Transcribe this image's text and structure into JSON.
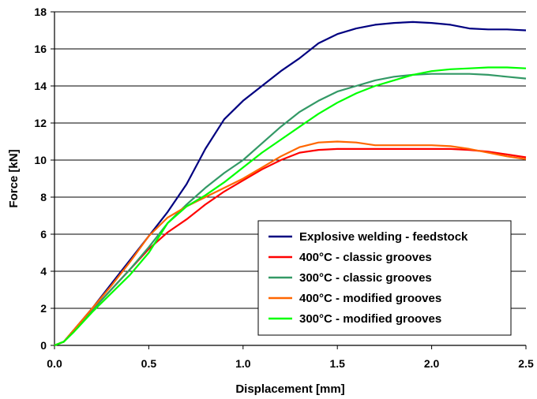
{
  "chart_data": {
    "type": "line",
    "title": "",
    "xlabel": "Displacement [mm]",
    "ylabel": "Force [kN]",
    "xlim": [
      0,
      2.5
    ],
    "ylim": [
      0,
      18
    ],
    "x_ticks": [
      "0.0",
      "0.5",
      "1.0",
      "1.5",
      "2.0",
      "2.5"
    ],
    "y_ticks": [
      "0",
      "2",
      "4",
      "6",
      "8",
      "10",
      "12",
      "14",
      "16",
      "18"
    ],
    "grid": "horizontal",
    "legend_position": "bottom-right",
    "series": [
      {
        "name": "Explosive welding - feedstock",
        "color": "#000080",
        "points": [
          [
            0,
            0
          ],
          [
            0.05,
            0.2
          ],
          [
            0.1,
            0.8
          ],
          [
            0.2,
            2.0
          ],
          [
            0.3,
            3.3
          ],
          [
            0.4,
            4.6
          ],
          [
            0.5,
            5.9
          ],
          [
            0.6,
            7.2
          ],
          [
            0.7,
            8.7
          ],
          [
            0.8,
            10.6
          ],
          [
            0.9,
            12.2
          ],
          [
            1.0,
            13.2
          ],
          [
            1.1,
            14.0
          ],
          [
            1.2,
            14.8
          ],
          [
            1.3,
            15.5
          ],
          [
            1.4,
            16.3
          ],
          [
            1.5,
            16.8
          ],
          [
            1.6,
            17.1
          ],
          [
            1.7,
            17.3
          ],
          [
            1.8,
            17.4
          ],
          [
            1.9,
            17.45
          ],
          [
            2.0,
            17.4
          ],
          [
            2.1,
            17.3
          ],
          [
            2.2,
            17.1
          ],
          [
            2.3,
            17.05
          ],
          [
            2.4,
            17.05
          ],
          [
            2.5,
            17.0
          ]
        ]
      },
      {
        "name": "400°C - classic grooves",
        "color": "#ff0000",
        "points": [
          [
            0,
            0
          ],
          [
            0.05,
            0.2
          ],
          [
            0.1,
            0.8
          ],
          [
            0.2,
            1.9
          ],
          [
            0.3,
            3.0
          ],
          [
            0.4,
            4.1
          ],
          [
            0.5,
            5.2
          ],
          [
            0.6,
            6.1
          ],
          [
            0.7,
            6.8
          ],
          [
            0.8,
            7.6
          ],
          [
            0.9,
            8.3
          ],
          [
            1.0,
            8.9
          ],
          [
            1.1,
            9.5
          ],
          [
            1.2,
            10.0
          ],
          [
            1.3,
            10.4
          ],
          [
            1.4,
            10.55
          ],
          [
            1.5,
            10.6
          ],
          [
            1.6,
            10.6
          ],
          [
            1.7,
            10.6
          ],
          [
            1.8,
            10.6
          ],
          [
            1.9,
            10.6
          ],
          [
            2.0,
            10.6
          ],
          [
            2.1,
            10.6
          ],
          [
            2.2,
            10.55
          ],
          [
            2.3,
            10.45
          ],
          [
            2.4,
            10.3
          ],
          [
            2.5,
            10.15
          ]
        ]
      },
      {
        "name": "300°C - classic grooves",
        "color": "#339966",
        "points": [
          [
            0,
            0
          ],
          [
            0.05,
            0.2
          ],
          [
            0.1,
            0.8
          ],
          [
            0.2,
            1.9
          ],
          [
            0.3,
            3.0
          ],
          [
            0.4,
            4.1
          ],
          [
            0.5,
            5.3
          ],
          [
            0.6,
            6.6
          ],
          [
            0.7,
            7.6
          ],
          [
            0.8,
            8.5
          ],
          [
            0.9,
            9.3
          ],
          [
            1.0,
            10.0
          ],
          [
            1.1,
            10.9
          ],
          [
            1.2,
            11.8
          ],
          [
            1.3,
            12.6
          ],
          [
            1.4,
            13.2
          ],
          [
            1.5,
            13.7
          ],
          [
            1.6,
            14.0
          ],
          [
            1.7,
            14.3
          ],
          [
            1.8,
            14.5
          ],
          [
            1.9,
            14.6
          ],
          [
            2.0,
            14.65
          ],
          [
            2.1,
            14.65
          ],
          [
            2.2,
            14.65
          ],
          [
            2.3,
            14.6
          ],
          [
            2.4,
            14.5
          ],
          [
            2.5,
            14.4
          ]
        ]
      },
      {
        "name": "400°C - modified grooves",
        "color": "#ff6600",
        "points": [
          [
            0,
            0
          ],
          [
            0.05,
            0.2
          ],
          [
            0.1,
            0.8
          ],
          [
            0.2,
            2.0
          ],
          [
            0.3,
            3.2
          ],
          [
            0.4,
            4.5
          ],
          [
            0.5,
            5.9
          ],
          [
            0.6,
            6.9
          ],
          [
            0.7,
            7.5
          ],
          [
            0.8,
            8.0
          ],
          [
            0.9,
            8.5
          ],
          [
            1.0,
            9.0
          ],
          [
            1.1,
            9.6
          ],
          [
            1.2,
            10.2
          ],
          [
            1.3,
            10.7
          ],
          [
            1.4,
            10.95
          ],
          [
            1.5,
            11.0
          ],
          [
            1.6,
            10.95
          ],
          [
            1.7,
            10.8
          ],
          [
            1.8,
            10.8
          ],
          [
            1.9,
            10.8
          ],
          [
            2.0,
            10.8
          ],
          [
            2.1,
            10.75
          ],
          [
            2.2,
            10.6
          ],
          [
            2.3,
            10.4
          ],
          [
            2.4,
            10.2
          ],
          [
            2.5,
            10.05
          ]
        ]
      },
      {
        "name": "300°C - modified grooves",
        "color": "#00ff00",
        "points": [
          [
            0,
            0
          ],
          [
            0.05,
            0.2
          ],
          [
            0.1,
            0.7
          ],
          [
            0.2,
            1.8
          ],
          [
            0.3,
            2.8
          ],
          [
            0.4,
            3.8
          ],
          [
            0.5,
            5.0
          ],
          [
            0.6,
            6.6
          ],
          [
            0.7,
            7.5
          ],
          [
            0.8,
            8.1
          ],
          [
            0.9,
            8.8
          ],
          [
            1.0,
            9.6
          ],
          [
            1.1,
            10.4
          ],
          [
            1.2,
            11.1
          ],
          [
            1.3,
            11.8
          ],
          [
            1.4,
            12.5
          ],
          [
            1.5,
            13.1
          ],
          [
            1.6,
            13.6
          ],
          [
            1.7,
            14.0
          ],
          [
            1.8,
            14.3
          ],
          [
            1.9,
            14.6
          ],
          [
            2.0,
            14.8
          ],
          [
            2.1,
            14.9
          ],
          [
            2.2,
            14.95
          ],
          [
            2.3,
            15.0
          ],
          [
            2.4,
            15.0
          ],
          [
            2.5,
            14.95
          ]
        ]
      }
    ]
  }
}
